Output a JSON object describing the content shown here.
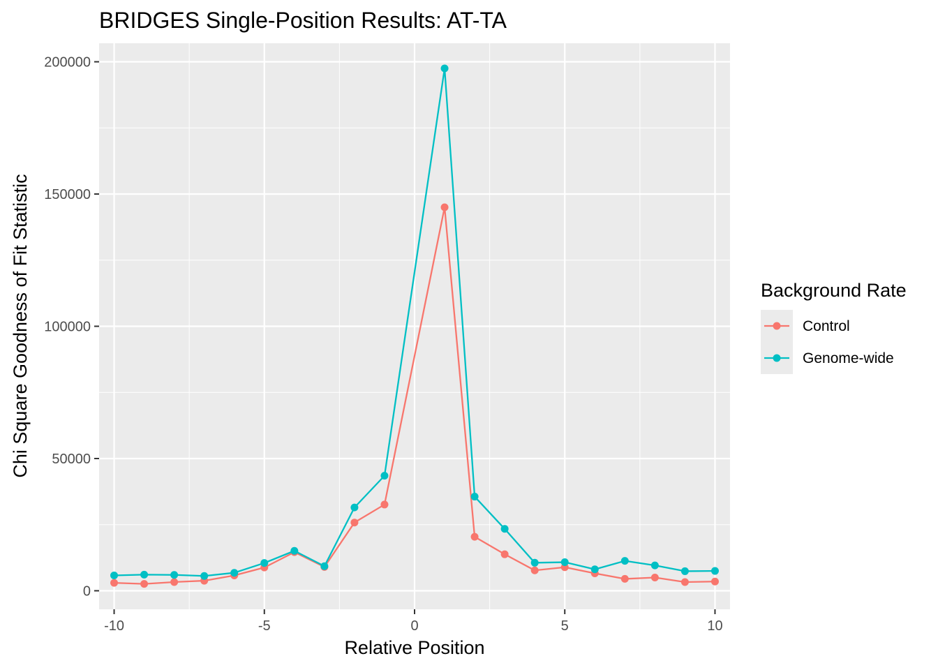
{
  "chart_data": {
    "type": "line",
    "title": "BRIDGES Single-Position Results: AT-TA",
    "xlabel": "Relative Position",
    "ylabel": "Chi Square Goodness of Fit Statistic",
    "xlim": [
      -10.5,
      10.5
    ],
    "ylim": [
      -7000,
      207000
    ],
    "x_ticks": [
      -10,
      -5,
      0,
      5,
      10
    ],
    "x_tick_labels": [
      "-10",
      "-5",
      "0",
      "5",
      "10"
    ],
    "y_ticks": [
      0,
      50000,
      100000,
      150000,
      200000
    ],
    "y_tick_labels": [
      "0",
      "50000",
      "100000",
      "150000",
      "200000"
    ],
    "grid": true,
    "legend": {
      "title": "Background Rate",
      "placement": "right"
    },
    "x": [
      -10,
      -9,
      -8,
      -7,
      -6,
      -5,
      -4,
      -3,
      -2,
      -1,
      1,
      2,
      3,
      4,
      5,
      6,
      7,
      8,
      9,
      10
    ],
    "series": [
      {
        "name": "Control",
        "color": "#F8766D",
        "values": [
          3000,
          2600,
          3300,
          3800,
          5800,
          8800,
          14600,
          9000,
          25800,
          32600,
          145000,
          20400,
          13800,
          7700,
          8900,
          6600,
          4500,
          5000,
          3300,
          3500
        ]
      },
      {
        "name": "Genome-wide",
        "color": "#00BFC4",
        "values": [
          5800,
          6100,
          6000,
          5600,
          6800,
          10500,
          15100,
          9300,
          31500,
          43500,
          197500,
          35600,
          23400,
          10600,
          10800,
          8100,
          11300,
          9600,
          7400,
          7500
        ]
      }
    ]
  }
}
